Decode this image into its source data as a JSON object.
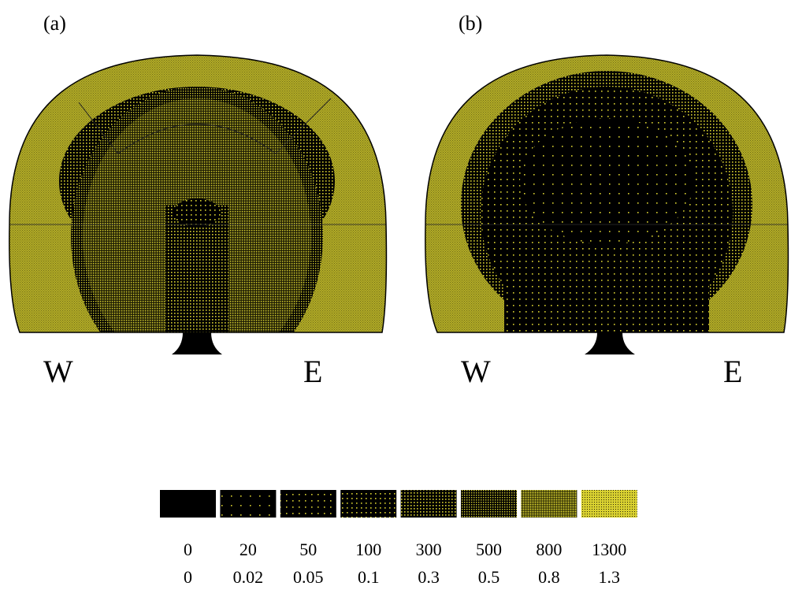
{
  "panels": [
    {
      "label": "(a)",
      "west": "W",
      "east": "E"
    },
    {
      "label": "(b)",
      "west": "W",
      "east": "E"
    }
  ],
  "legend": {
    "row1": [
      0,
      20,
      50,
      100,
      300,
      500,
      800,
      1300
    ],
    "row2": [
      0,
      0.02,
      0.05,
      0.1,
      0.3,
      0.5,
      0.8,
      1.3
    ]
  }
}
